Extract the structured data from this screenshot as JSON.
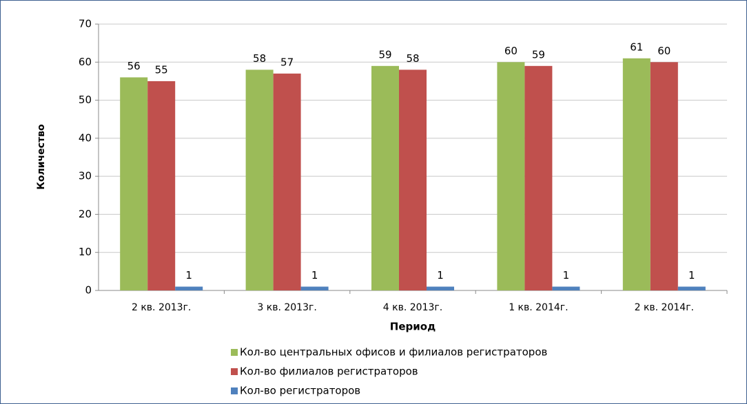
{
  "chart_data": {
    "type": "bar",
    "categories": [
      "2 кв. 2013г.",
      "3 кв. 2013г.",
      "4 кв. 2013г.",
      "1 кв. 2014г.",
      "2 кв. 2014г."
    ],
    "series": [
      {
        "name": "Кол-во центральных офисов и филиалов регистраторов",
        "color": "#9bbb59",
        "values": [
          56,
          58,
          59,
          60,
          61
        ]
      },
      {
        "name": "Кол-во филиалов регистраторов",
        "color": "#c0504d",
        "values": [
          55,
          57,
          58,
          59,
          60
        ]
      },
      {
        "name": "Кол-во регистраторов",
        "color": "#4f81bd",
        "values": [
          1,
          1,
          1,
          1,
          1
        ]
      }
    ],
    "x_label": "Период",
    "y_label": "Количество",
    "ylim": [
      0,
      70
    ],
    "yticks": [
      0,
      10,
      20,
      30,
      40,
      50,
      60,
      70
    ],
    "grid": true,
    "legend": "bottom"
  }
}
